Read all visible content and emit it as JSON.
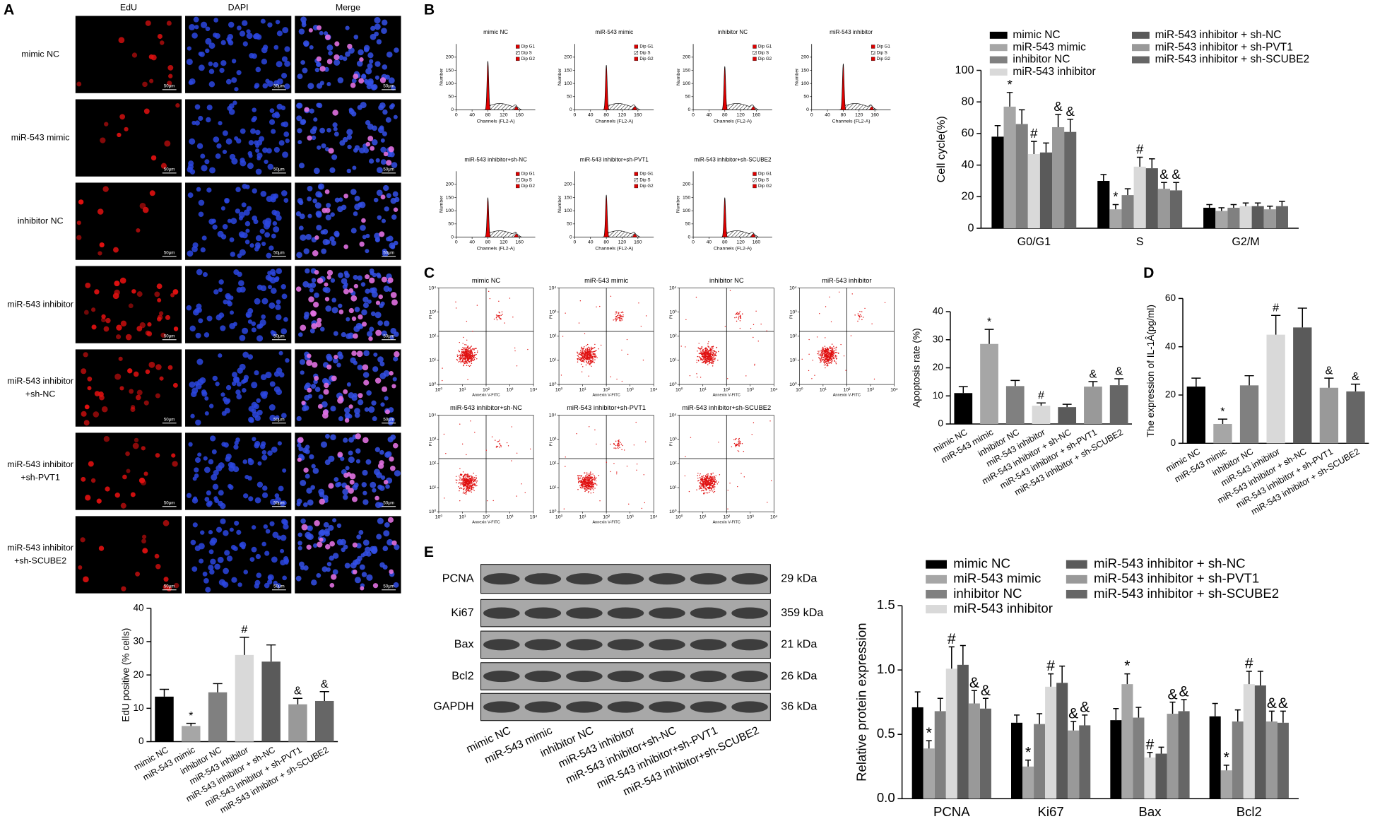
{
  "panel_labels": [
    "A",
    "B",
    "C",
    "D",
    "E"
  ],
  "microscopy": {
    "columns": [
      "EdU",
      "DAPI",
      "Merge"
    ],
    "rows": [
      [
        "mimic NC"
      ],
      [
        "miR-543 mimic"
      ],
      [
        "inhibitor NC"
      ],
      [
        "miR-543 inhibitor"
      ],
      [
        "miR-543 inhibitor",
        "+sh-NC"
      ],
      [
        "miR-543 inhibitor",
        "+sh-PVT1"
      ],
      [
        "miR-543 inhibitor",
        "+sh-SCUBE2"
      ]
    ],
    "scale_bar": "50μm"
  },
  "cell_cycle_plots": {
    "titles": [
      "mimic NC",
      "miR-543 mimic",
      "inhibitor NC",
      "miR-543 inhibitor",
      "miR-543 inhibitor+sh-NC",
      "miR-543 inhibitor+sh-PVT1",
      "miR-543 inhibitor+sh-SCUBE2"
    ],
    "xlabel": "Channels (FL2-A)",
    "ylabel": "Number",
    "xlim": [
      0,
      200
    ],
    "xticks": [
      0,
      40,
      80,
      120,
      160
    ],
    "ylim": [
      0,
      250
    ],
    "yticks": [
      0,
      50,
      100,
      150,
      200
    ],
    "legend": [
      "Dip G1",
      "Dip S",
      "Dip G2"
    ]
  },
  "flow_plots": {
    "titles": [
      "mimic NC",
      "miR-543 mimic",
      "inhibitor NC",
      "miR-543 inhibitor",
      "miR-543 inhibitor+sh-NC",
      "miR-543 inhibitor+sh-PVT1",
      "miR-543 inhibitor+sh-SCUBE2"
    ],
    "xlabel": "Annexin V-FITC",
    "ylabel": "PI",
    "log": true,
    "xlim": [
      1,
      10000
    ],
    "ylim": [
      1,
      10000
    ],
    "xticks": [
      {
        "value": 1,
        "label": "10⁰"
      },
      {
        "value": 10,
        "label": "10¹"
      },
      {
        "value": 100,
        "label": "10²"
      },
      {
        "value": 1000,
        "label": "10³"
      },
      {
        "value": 10000,
        "label": "10⁴"
      }
    ],
    "yticks": [
      {
        "value": 1,
        "label": "10⁰"
      },
      {
        "value": 10,
        "label": "10¹"
      },
      {
        "value": 100,
        "label": "10²"
      },
      {
        "value": 1000,
        "label": "10³"
      },
      {
        "value": 10000,
        "label": "10⁴"
      }
    ]
  },
  "western_blot": {
    "proteins": [
      "PCNA",
      "Ki67",
      "Bax",
      "Bcl2",
      "GAPDH"
    ],
    "sizes": [
      "29 kDa",
      "359 kDa",
      "21 kDa",
      "26 kDa",
      "36 kDa"
    ],
    "lanes": [
      "mimic NC",
      "miR-543 mimic",
      "inhibitor NC",
      "miR-543 inhibitor",
      "miR-543 inhibitor+sh-NC",
      "miR-543 inhibitor+sh-PVT1",
      "miR-543 inhibitor+sh-SCUBE2"
    ]
  },
  "chart_data": [
    {
      "type": "bar",
      "ylabel": "EdU positive (% cells)",
      "categories": [
        "mimic NC",
        "miR-543 mimic",
        "inhibitor NC",
        "miR-543 inhibitor",
        "miR-543 inhibitor + sh-NC",
        "miR-543 inhibitor + sh-PVT1",
        "miR-543 inhibitor + sh-SCUBE2"
      ],
      "values": [
        13.5,
        4.7,
        14.8,
        26,
        24,
        11.2,
        12.2
      ],
      "errors": [
        2.2,
        0.8,
        2.6,
        5.3,
        5,
        1.8,
        2.8
      ],
      "significance": [
        null,
        "*",
        null,
        "#",
        null,
        "&",
        "&"
      ],
      "colors": [
        "#000000",
        "#a6a6a6",
        "#808080",
        "#d9d9d9",
        "#5a5a5a",
        "#999999",
        "#666666"
      ],
      "ylim": [
        0,
        40
      ],
      "yticks": [
        0,
        10,
        20,
        30,
        40
      ]
    },
    {
      "type": "bar",
      "ylabel": "Cell cycle(%)",
      "categories": [
        "G0/G1",
        "S",
        "G2/M"
      ],
      "ylim": [
        0,
        100
      ],
      "yticks": [
        0,
        20,
        40,
        60,
        80,
        100
      ],
      "series": [
        {
          "name": "mimic NC",
          "color": "#000000",
          "values": [
            58,
            30,
            13
          ],
          "errors": [
            7,
            4,
            2
          ],
          "significance": [
            null,
            null,
            null
          ]
        },
        {
          "name": "miR-543 mimic",
          "color": "#a6a6a6",
          "values": [
            77,
            12,
            11
          ],
          "errors": [
            9,
            3,
            2
          ],
          "significance": [
            "*",
            "*",
            null
          ]
        },
        {
          "name": "inhibitor NC",
          "color": "#808080",
          "values": [
            66,
            21,
            13
          ],
          "errors": [
            9,
            4,
            2
          ],
          "significance": [
            null,
            null,
            null
          ]
        },
        {
          "name": "miR-543 inhibitor",
          "color": "#d9d9d9",
          "values": [
            47,
            39,
            14
          ],
          "errors": [
            8,
            6,
            2
          ],
          "significance": [
            "#",
            "#",
            null
          ]
        },
        {
          "name": "miR-543 inhibitor + sh-NC",
          "color": "#5a5a5a",
          "values": [
            48,
            38,
            14
          ],
          "errors": [
            6,
            6,
            2
          ],
          "significance": [
            null,
            null,
            null
          ]
        },
        {
          "name": "miR-543 inhibitor + sh-PVT1",
          "color": "#999999",
          "values": [
            64,
            25,
            12
          ],
          "errors": [
            8,
            4,
            2
          ],
          "significance": [
            "&",
            "&",
            null
          ]
        },
        {
          "name": "miR-543 inhibitor + sh-SCUBE2",
          "color": "#666666",
          "values": [
            61,
            24,
            14
          ],
          "errors": [
            8,
            5,
            3
          ],
          "significance": [
            "&",
            "&",
            null
          ]
        }
      ]
    },
    {
      "type": "bar",
      "ylabel": "Apoptosis rate (%)",
      "categories": [
        "mimic NC",
        "miR-543 mimic",
        "inhibitor NC",
        "miR-543 inhibitor",
        "miR-543 inhibitor + sh-NC",
        "miR-543 inhibitor + sh-PVT1",
        "miR-543 inhibitor + sh-SCUBE2"
      ],
      "values": [
        11,
        28.5,
        13.5,
        6.5,
        6,
        13.3,
        13.8
      ],
      "errors": [
        2.3,
        5.2,
        2,
        1,
        1,
        1.8,
        2.3
      ],
      "significance": [
        null,
        "*",
        null,
        "#",
        null,
        "&",
        "&"
      ],
      "colors": [
        "#000000",
        "#a6a6a6",
        "#808080",
        "#d9d9d9",
        "#5a5a5a",
        "#999999",
        "#666666"
      ],
      "ylim": [
        0,
        40
      ],
      "yticks": [
        0,
        10,
        20,
        30,
        40
      ]
    },
    {
      "type": "bar",
      "ylabel": "The expression of IL-1Â(pg/ml)",
      "categories": [
        "mimic NC",
        "miR-543 mimic",
        "inhibitor NC",
        "miR-543 inhibitor",
        "miR-543 inhibitor + sh-NC",
        "miR-543 inhibitor + sh-PVT1",
        "miR-543 inhibitor + sh-SCUBE2"
      ],
      "values": [
        23.5,
        8,
        24,
        45,
        48,
        23,
        21.5
      ],
      "errors": [
        3.5,
        2,
        4,
        8,
        8,
        4,
        3
      ],
      "significance": [
        null,
        "*",
        null,
        "#",
        null,
        "&",
        "&"
      ],
      "colors": [
        "#000000",
        "#a6a6a6",
        "#808080",
        "#d9d9d9",
        "#5a5a5a",
        "#999999",
        "#666666"
      ],
      "ylim": [
        0,
        60
      ],
      "yticks": [
        0,
        20,
        40,
        60
      ]
    },
    {
      "type": "bar",
      "ylabel": "Relative protein expression",
      "categories": [
        "PCNA",
        "Ki67",
        "Bax",
        "Bcl2"
      ],
      "ylim": [
        0,
        1.5
      ],
      "yticks": [
        {
          "value": 0,
          "label": "0.0"
        },
        0.5,
        {
          "value": 1,
          "label": "1.0"
        },
        1.5
      ],
      "series": [
        {
          "name": "mimic NC",
          "color": "#000000",
          "values": [
            0.71,
            0.59,
            0.61,
            0.64
          ],
          "errors": [
            0.12,
            0.06,
            0.09,
            0.1
          ],
          "significance": [
            null,
            null,
            null,
            null
          ]
        },
        {
          "name": "miR-543 mimic",
          "color": "#a6a6a6",
          "values": [
            0.39,
            0.25,
            0.89,
            0.22
          ],
          "errors": [
            0.06,
            0.05,
            0.08,
            0.04
          ],
          "significance": [
            "*",
            "*",
            "*",
            "*"
          ]
        },
        {
          "name": "inhibitor NC",
          "color": "#808080",
          "values": [
            0.68,
            0.58,
            0.63,
            0.6
          ],
          "errors": [
            0.1,
            0.08,
            0.08,
            0.09
          ],
          "significance": [
            null,
            null,
            null,
            null
          ]
        },
        {
          "name": "miR-543 inhibitor",
          "color": "#d9d9d9",
          "values": [
            1.01,
            0.87,
            0.32,
            0.89
          ],
          "errors": [
            0.17,
            0.1,
            0.04,
            0.1
          ],
          "significance": [
            "#",
            "#",
            "#",
            "#"
          ]
        },
        {
          "name": "miR-543 inhibitor + sh-NC",
          "color": "#5a5a5a",
          "values": [
            1.04,
            0.9,
            0.35,
            0.88
          ],
          "errors": [
            0.15,
            0.13,
            0.05,
            0.11
          ],
          "significance": [
            null,
            null,
            null,
            null
          ]
        },
        {
          "name": "miR-543 inhibitor + sh-PVT1",
          "color": "#999999",
          "values": [
            0.74,
            0.53,
            0.66,
            0.6
          ],
          "errors": [
            0.1,
            0.07,
            0.09,
            0.08
          ],
          "significance": [
            "&",
            "&",
            "&",
            "&"
          ]
        },
        {
          "name": "miR-543 inhibitor + sh-SCUBE2",
          "color": "#666666",
          "values": [
            0.7,
            0.57,
            0.68,
            0.59
          ],
          "errors": [
            0.08,
            0.08,
            0.09,
            0.09
          ],
          "significance": [
            "&",
            "&",
            "&",
            "&"
          ]
        }
      ]
    }
  ]
}
